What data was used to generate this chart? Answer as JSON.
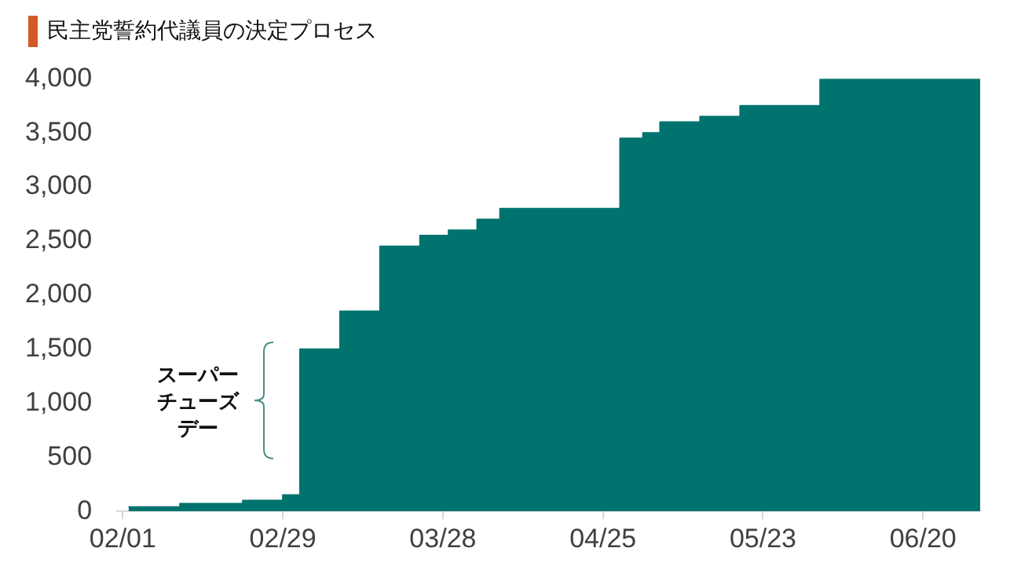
{
  "chart_data": {
    "type": "area",
    "title": "民主党誓約代議員の決定プロセス",
    "x": [
      "--02-02",
      "--02-11",
      "--02-11",
      "--02-22",
      "--02-22",
      "--02-29",
      "--02-29",
      "--03-03",
      "--03-03",
      "--03-10",
      "--03-10",
      "--03-17",
      "--03-17",
      "--03-24",
      "--03-24",
      "--03-29",
      "--03-29",
      "--04-03",
      "--04-03",
      "--04-07",
      "--04-07",
      "--04-28",
      "--04-28",
      "--05-02",
      "--05-02",
      "--05-05",
      "--05-05",
      "--05-12",
      "--05-12",
      "--05-19",
      "--05-19",
      "--06-02",
      "--06-02",
      "--06-30"
    ],
    "values": [
      40,
      40,
      70,
      70,
      100,
      100,
      150,
      150,
      1500,
      1500,
      1850,
      1850,
      2450,
      2450,
      2550,
      2550,
      2600,
      2600,
      2700,
      2700,
      2800,
      2800,
      3450,
      3450,
      3500,
      3500,
      3600,
      3600,
      3650,
      3650,
      3750,
      3750,
      4000,
      4000
    ],
    "color": "#00736e",
    "xlim": [
      "--01-31",
      "--06-30"
    ],
    "xticks": [
      {
        "value": "--02-01",
        "label": "02/01"
      },
      {
        "value": "--02-29",
        "label": "02/29"
      },
      {
        "value": "--03-28",
        "label": "03/28"
      },
      {
        "value": "--04-25",
        "label": "04/25"
      },
      {
        "value": "--05-23",
        "label": "05/23"
      },
      {
        "value": "--06-20",
        "label": "06/20"
      }
    ],
    "ylim": [
      0,
      4000
    ],
    "yticks": [
      0,
      500,
      {
        "value": 1000,
        "label": "1,000"
      },
      {
        "value": 1500,
        "label": "1,500"
      },
      {
        "value": 2000,
        "label": "2,000"
      },
      {
        "value": 2500,
        "label": "2,500"
      },
      {
        "value": 3000,
        "label": "3,000"
      },
      {
        "value": 3500,
        "label": "3,500"
      },
      {
        "value": 4000,
        "label": "4,000"
      }
    ],
    "annotations": [
      "スーパーチューズデー"
    ]
  }
}
